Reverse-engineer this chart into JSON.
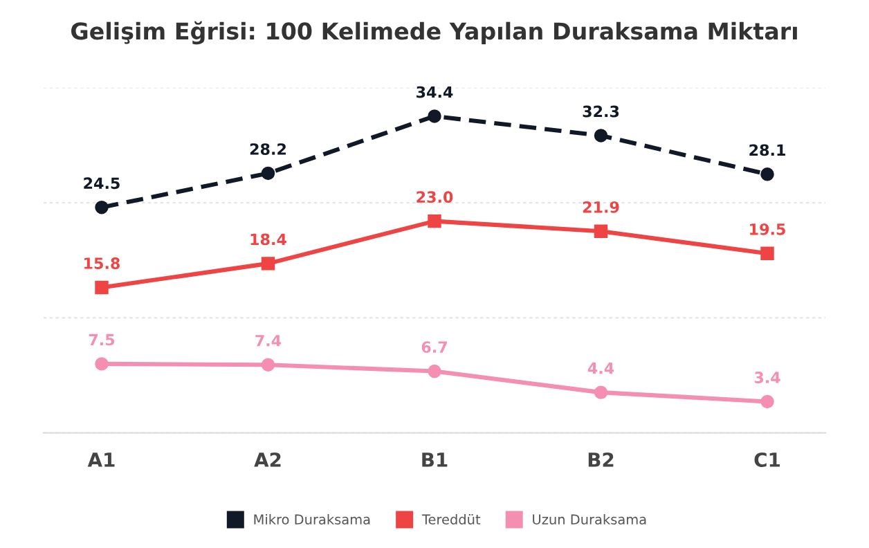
{
  "chart_data": {
    "type": "line",
    "title": "Gelişim Eğrisi: 100 Kelimede Yapılan Duraksama Miktarı",
    "categories": [
      "A1",
      "A2",
      "B1",
      "B2",
      "C1"
    ],
    "series": [
      {
        "name": "Mikro Duraksama",
        "color": "#111827",
        "values": [
          24.5,
          28.2,
          34.4,
          32.3,
          28.1
        ],
        "value_labels": [
          "24.5",
          "28.2",
          "34.4",
          "32.3",
          "28.1"
        ],
        "marker": "circle",
        "line_style": "dashed"
      },
      {
        "name": "Tereddüt",
        "color": "#ef4444",
        "values": [
          15.8,
          18.4,
          23.0,
          21.9,
          19.5
        ],
        "value_labels": [
          "15.8",
          "18.4",
          "23.0",
          "21.9",
          "19.5"
        ],
        "marker": "square",
        "line_style": "solid"
      },
      {
        "name": "Uzun Duraksama",
        "color": "#f48fb1",
        "values": [
          7.5,
          7.4,
          6.7,
          4.4,
          3.4
        ],
        "value_labels": [
          "7.5",
          "7.4",
          "6.7",
          "4.4",
          "3.4"
        ],
        "marker": "circle",
        "line_style": "solid"
      }
    ],
    "ylim": [
      0,
      37.5
    ],
    "yticks": [
      {
        "value": 0,
        "label": null
      },
      {
        "value": 12.5,
        "label": null
      },
      {
        "value": 25,
        "label": null
      },
      {
        "value": 37.5,
        "label": null
      }
    ],
    "tick_labels": "x",
    "grid": "y",
    "legend": "bottom"
  }
}
